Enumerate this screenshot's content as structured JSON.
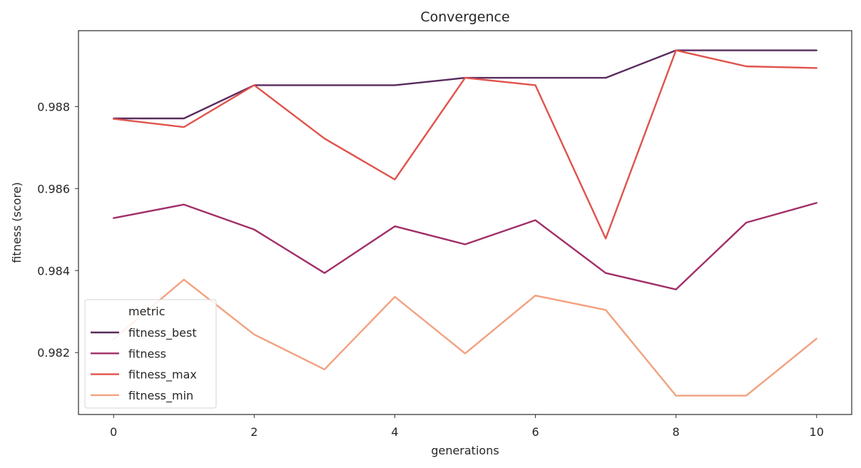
{
  "chart_data": {
    "type": "line",
    "title": "Convergence",
    "xlabel": "generations",
    "ylabel": "fitness (score)",
    "x": [
      0,
      1,
      2,
      3,
      4,
      5,
      6,
      7,
      8,
      9,
      10
    ],
    "xlim": [
      -0.5,
      10.5
    ],
    "ylim": [
      0.98049,
      0.98985
    ],
    "xticks": [
      0,
      2,
      4,
      6,
      8,
      10
    ],
    "xtick_labels": [
      "0",
      "2",
      "4",
      "6",
      "8",
      "10"
    ],
    "yticks": [
      0.982,
      0.984,
      0.986,
      0.988
    ],
    "ytick_labels": [
      "0.982",
      "0.984",
      "0.986",
      "0.988"
    ],
    "grid": false,
    "legend": {
      "title": "metric",
      "placement": "lower-left"
    },
    "series": [
      {
        "name": "fitness_best",
        "color": "#5a2b5e",
        "values": [
          0.98771,
          0.98771,
          0.98852,
          0.98852,
          0.98852,
          0.9887,
          0.9887,
          0.9887,
          0.98937,
          0.98937,
          0.98937
        ]
      },
      {
        "name": "fitness",
        "color": "#a12e68",
        "values": [
          0.98528,
          0.98561,
          0.985,
          0.98394,
          0.98508,
          0.98464,
          0.98523,
          0.98394,
          0.98354,
          0.98517,
          0.98565
        ]
      },
      {
        "name": "fitness_max",
        "color": "#e0534c",
        "values": [
          0.9877,
          0.9875,
          0.98852,
          0.98722,
          0.98622,
          0.9887,
          0.98852,
          0.98478,
          0.98937,
          0.98898,
          0.98894
        ]
      },
      {
        "name": "fitness_min",
        "color": "#f2a17f",
        "values": [
          0.98233,
          0.98378,
          0.98244,
          0.98159,
          0.98336,
          0.98198,
          0.98339,
          0.98304,
          0.98095,
          0.98095,
          0.98234
        ]
      }
    ]
  }
}
